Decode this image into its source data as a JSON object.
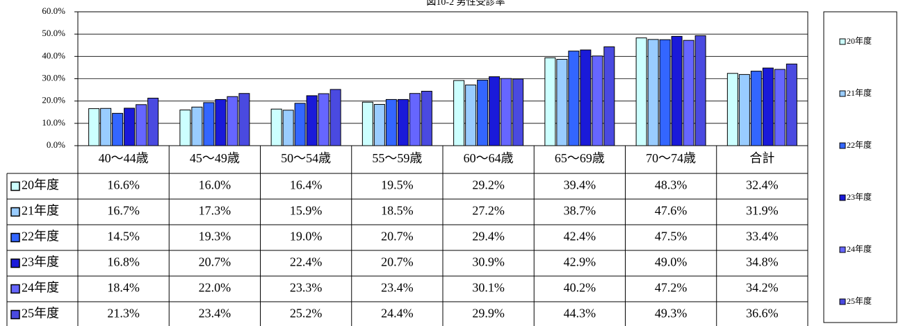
{
  "chart_data": {
    "type": "bar",
    "title": "図10-2 男性受診率",
    "categories": [
      "40〜44歳",
      "45〜49歳",
      "50〜54歳",
      "55〜59歳",
      "60〜64歳",
      "65〜69歳",
      "70〜74歳",
      "合計"
    ],
    "series": [
      {
        "name": "20年度",
        "color": "#ccffff",
        "values": [
          16.6,
          16.0,
          16.4,
          19.5,
          29.2,
          39.4,
          48.3,
          32.4
        ],
        "value_labels": [
          "16.6%",
          "16.0%",
          "16.4%",
          "19.5%",
          "29.2%",
          "39.4%",
          "48.3%",
          "32.4%"
        ]
      },
      {
        "name": "21年度",
        "color": "#99ccff",
        "values": [
          16.7,
          17.3,
          15.9,
          18.5,
          27.2,
          38.7,
          47.6,
          31.9
        ],
        "value_labels": [
          "16.7%",
          "17.3%",
          "15.9%",
          "18.5%",
          "27.2%",
          "38.7%",
          "47.6%",
          "31.9%"
        ]
      },
      {
        "name": "22年度",
        "color": "#3366ff",
        "values": [
          14.5,
          19.3,
          19.0,
          20.7,
          29.4,
          42.4,
          47.5,
          33.4
        ],
        "value_labels": [
          "14.5%",
          "19.3%",
          "19.0%",
          "20.7%",
          "29.4%",
          "42.4%",
          "47.5%",
          "33.4%"
        ]
      },
      {
        "name": "23年度",
        "color": "#1a1ad9",
        "values": [
          16.8,
          20.7,
          22.4,
          20.7,
          30.9,
          42.9,
          49.0,
          34.8
        ],
        "value_labels": [
          "16.8%",
          "20.7%",
          "22.4%",
          "20.7%",
          "30.9%",
          "42.9%",
          "49.0%",
          "34.8%"
        ]
      },
      {
        "name": "24年度",
        "color": "#6666ff",
        "values": [
          18.4,
          22.0,
          23.3,
          23.4,
          30.1,
          40.2,
          47.2,
          34.2
        ],
        "value_labels": [
          "18.4%",
          "22.0%",
          "23.3%",
          "23.4%",
          "30.1%",
          "40.2%",
          "47.2%",
          "34.2%"
        ]
      },
      {
        "name": "25年度",
        "color": "#4a4ae0",
        "values": [
          21.3,
          23.4,
          25.2,
          24.4,
          29.9,
          44.3,
          49.3,
          36.6
        ],
        "value_labels": [
          "21.3%",
          "23.4%",
          "25.2%",
          "24.4%",
          "29.9%",
          "44.3%",
          "49.3%",
          "36.6%"
        ]
      }
    ],
    "ylim": [
      0,
      60
    ],
    "yticks": [
      {
        "value": 0,
        "label": "0.0%"
      },
      {
        "value": 10,
        "label": "10.0%"
      },
      {
        "value": 20,
        "label": "20.0%"
      },
      {
        "value": 30,
        "label": "30.0%"
      },
      {
        "value": 40,
        "label": "40.0%"
      },
      {
        "value": 50,
        "label": "50.0%"
      },
      {
        "value": 60,
        "label": "60.0%"
      }
    ],
    "grid": true
  }
}
